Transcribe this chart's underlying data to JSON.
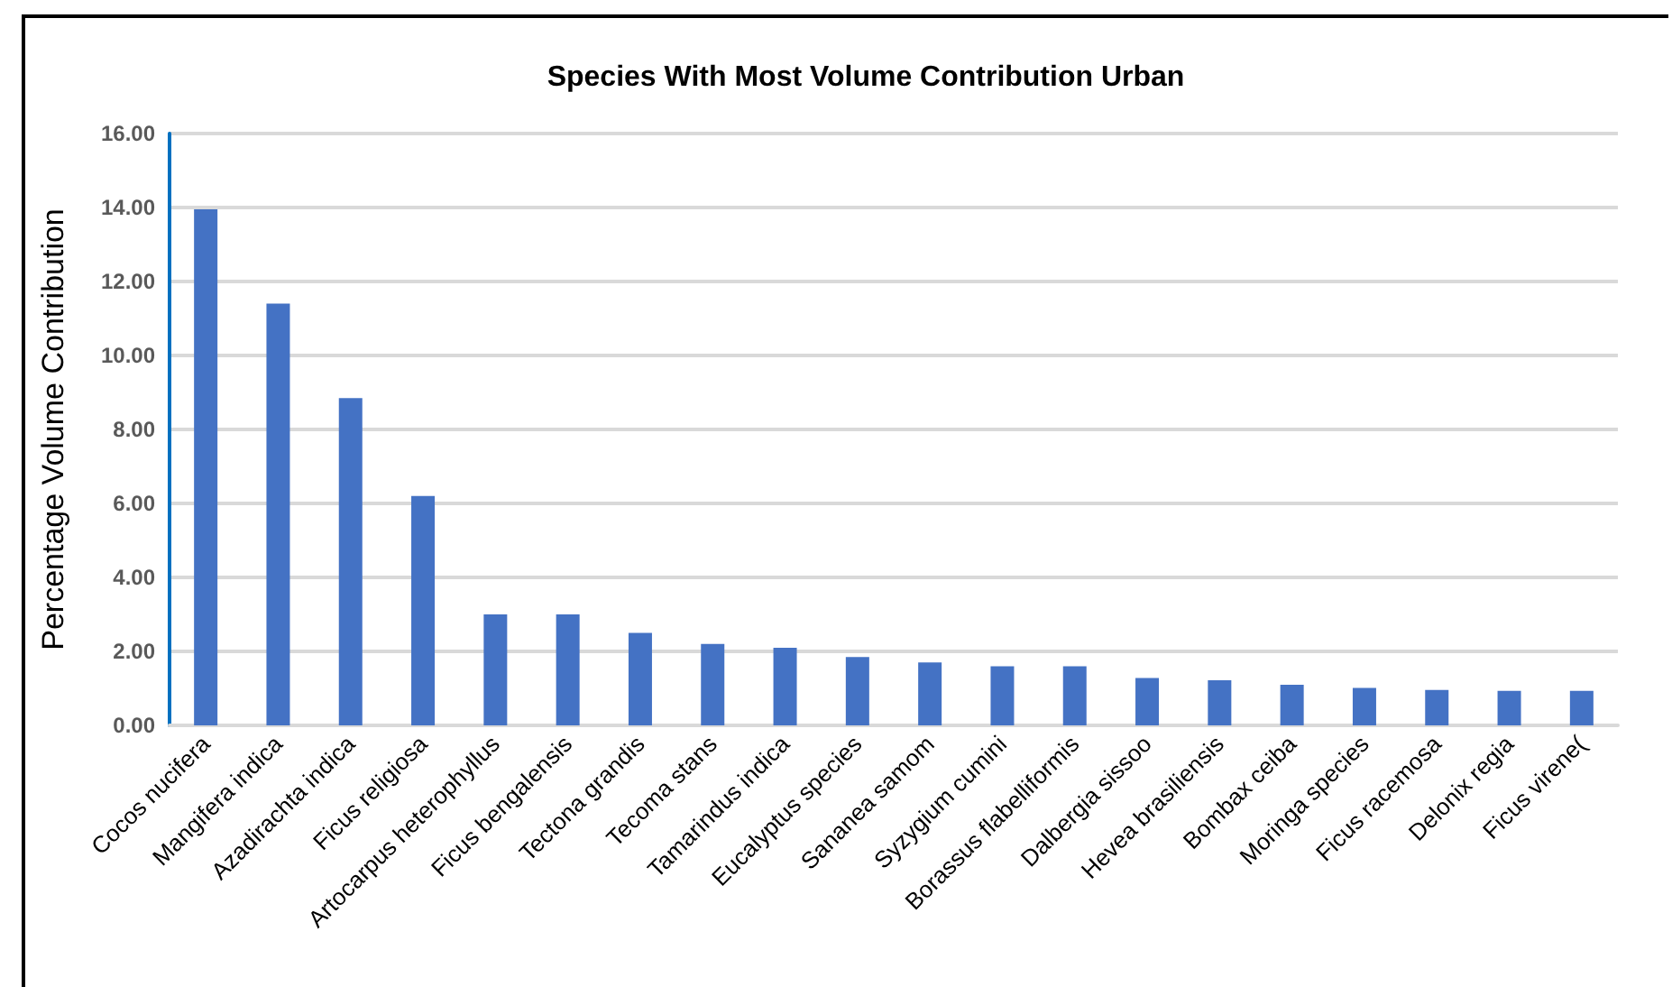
{
  "chart_data": {
    "type": "bar",
    "title": "Species With Most Volume Contribution Urban",
    "ylabel": "Percentage Volume Contribution",
    "categories": [
      "Cocos nucifera",
      "Mangifera indica",
      "Azadirachta indica",
      "Ficus religiosa",
      "Artocarpus heterophyllus",
      "Ficus bengalensis",
      "Tectona grandis",
      "Tecoma stans",
      "Tamarindus indica",
      "Eucalyptus species",
      "Sananea samom",
      "Syzygium cumini",
      "Borassus flabelliformis",
      "Dalbergia sissoo",
      "Hevea brasiliensis",
      "Bombax ceiba",
      "Moringa species",
      "Ficus racemosa",
      "Delonix regia",
      "Ficus virene("
    ],
    "values": [
      13.95,
      11.4,
      8.85,
      6.2,
      3.0,
      3.0,
      2.5,
      2.2,
      2.1,
      1.85,
      1.7,
      1.6,
      1.6,
      1.28,
      1.22,
      1.1,
      1.01,
      0.96,
      0.93,
      0.93
    ],
    "color": "#4472c4",
    "ylim": [
      0,
      16
    ],
    "yticks": [
      {
        "value": 0,
        "label": "0.00"
      },
      {
        "value": 2,
        "label": "2.00"
      },
      {
        "value": 4,
        "label": "4.00"
      },
      {
        "value": 6,
        "label": "6.00"
      },
      {
        "value": 8,
        "label": "8.00"
      },
      {
        "value": 10,
        "label": "10.00"
      },
      {
        "value": 12,
        "label": "12.00"
      },
      {
        "value": 14,
        "label": "14.00"
      },
      {
        "value": 16,
        "label": "16.00"
      }
    ],
    "grid": "y"
  }
}
